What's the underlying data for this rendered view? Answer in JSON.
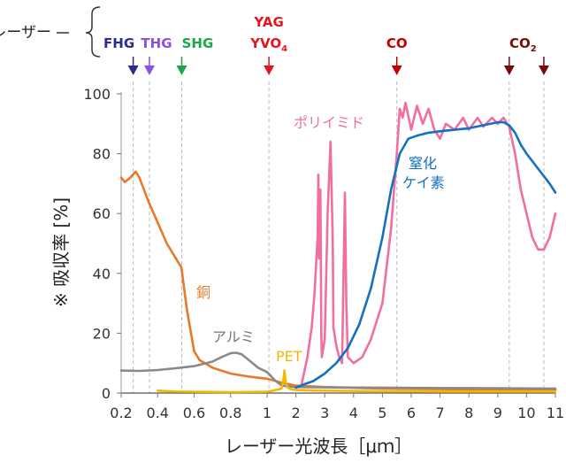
{
  "chart_data": {
    "type": "line",
    "xlabel": "レーザー光波長［μｍ］",
    "ylabel": "※ 吸収率 [%]",
    "ylim": [
      0,
      100
    ],
    "yticks": [
      "0",
      "20",
      "40",
      "60",
      "80",
      "100"
    ],
    "yticks_values": [
      0,
      20,
      40,
      60,
      80,
      100
    ],
    "xticks": [
      "0.2",
      "0.4",
      "0.6",
      "0.8",
      "1",
      "2",
      "3",
      "4",
      "5",
      "6",
      "7",
      "8",
      "9",
      "10",
      "11"
    ],
    "xticks_values": [
      0.2,
      0.4,
      0.6,
      0.8,
      1,
      2,
      3,
      4,
      5,
      6,
      7,
      8,
      9,
      10,
      11
    ],
    "grid": false,
    "laser_group_label": "レーザー",
    "lasers": [
      {
        "id": "fhg",
        "label": "FHG",
        "wavelength": 0.266,
        "color": "#2c2a8c"
      },
      {
        "id": "thg",
        "label": "THG",
        "wavelength": 0.355,
        "color": "#8c4fe6"
      },
      {
        "id": "shg",
        "label": "SHG",
        "wavelength": 0.532,
        "color": "#1ca64a"
      },
      {
        "id": "yag",
        "label": "YAG",
        "label2": "YVO",
        "subscript": "4",
        "wavelength": 1.064,
        "color": "#e4161c"
      },
      {
        "id": "co",
        "label": "CO",
        "wavelength": 5.5,
        "color": "#c00000"
      },
      {
        "id": "co2a",
        "label": "CO",
        "subscript": "2",
        "wavelength": 9.4,
        "color": "#7a0a0a"
      },
      {
        "id": "co2b",
        "label": "",
        "wavelength": 10.6,
        "color": "#7a0a0a"
      }
    ],
    "series": [
      {
        "name": "銅",
        "color": "#e8782a",
        "points": [
          [
            0.2,
            72
          ],
          [
            0.22,
            70.5
          ],
          [
            0.25,
            72
          ],
          [
            0.28,
            74
          ],
          [
            0.3,
            72
          ],
          [
            0.35,
            64
          ],
          [
            0.4,
            57
          ],
          [
            0.45,
            50
          ],
          [
            0.5,
            45
          ],
          [
            0.53,
            42
          ],
          [
            0.56,
            28
          ],
          [
            0.6,
            14
          ],
          [
            0.63,
            11
          ],
          [
            0.7,
            8.5
          ],
          [
            0.8,
            6.5
          ],
          [
            0.9,
            5.5
          ],
          [
            1,
            4.8
          ],
          [
            1.5,
            3.5
          ],
          [
            2,
            2.5
          ],
          [
            3,
            2
          ],
          [
            5,
            1.5
          ],
          [
            7,
            1.3
          ],
          [
            9,
            1.2
          ],
          [
            11,
            1.1
          ]
        ]
      },
      {
        "name": "アルミ",
        "color": "#8a8a8a",
        "points": [
          [
            0.2,
            7.5
          ],
          [
            0.3,
            7.4
          ],
          [
            0.4,
            7.7
          ],
          [
            0.5,
            8.3
          ],
          [
            0.6,
            9
          ],
          [
            0.7,
            10.5
          ],
          [
            0.75,
            12
          ],
          [
            0.8,
            13.3
          ],
          [
            0.83,
            13.5
          ],
          [
            0.86,
            13
          ],
          [
            0.9,
            11
          ],
          [
            0.95,
            8.5
          ],
          [
            1,
            7
          ],
          [
            1.3,
            4
          ],
          [
            1.5,
            2.6
          ],
          [
            1.7,
            2.2
          ],
          [
            2,
            2
          ],
          [
            3,
            1.9
          ],
          [
            5,
            1.8
          ],
          [
            7,
            1.7
          ],
          [
            9,
            1.6
          ],
          [
            11,
            1.5
          ]
        ]
      },
      {
        "name": "PET",
        "color": "#f2b800",
        "points": [
          [
            0.4,
            0.8
          ],
          [
            0.5,
            0.5
          ],
          [
            0.6,
            0.4
          ],
          [
            0.8,
            0.3
          ],
          [
            1,
            0.4
          ],
          [
            1.2,
            0.8
          ],
          [
            1.4,
            1.2
          ],
          [
            1.5,
            1.5
          ],
          [
            1.56,
            4
          ],
          [
            1.6,
            7.5
          ],
          [
            1.64,
            4
          ],
          [
            1.7,
            2
          ],
          [
            1.8,
            1.3
          ],
          [
            2,
            1
          ],
          [
            3,
            0.8
          ],
          [
            5,
            0.6
          ],
          [
            7,
            0.5
          ],
          [
            9,
            0.5
          ],
          [
            11,
            0.5
          ]
        ]
      },
      {
        "name": "ポリイミド",
        "color": "#f06ea0",
        "points": [
          [
            2.2,
            3
          ],
          [
            2.4,
            12
          ],
          [
            2.55,
            22
          ],
          [
            2.65,
            34
          ],
          [
            2.75,
            52
          ],
          [
            2.78,
            73
          ],
          [
            2.8,
            45
          ],
          [
            2.85,
            68
          ],
          [
            2.88,
            20
          ],
          [
            2.9,
            12
          ],
          [
            3,
            18
          ],
          [
            3.1,
            60
          ],
          [
            3.2,
            84
          ],
          [
            3.28,
            50
          ],
          [
            3.3,
            22
          ],
          [
            3.4,
            16
          ],
          [
            3.5,
            12
          ],
          [
            3.6,
            10
          ],
          [
            3.7,
            67
          ],
          [
            3.75,
            30
          ],
          [
            3.8,
            12
          ],
          [
            4,
            10
          ],
          [
            4.3,
            12
          ],
          [
            4.6,
            18
          ],
          [
            5,
            30
          ],
          [
            5.3,
            55
          ],
          [
            5.5,
            80
          ],
          [
            5.6,
            95
          ],
          [
            5.7,
            92
          ],
          [
            5.8,
            97
          ],
          [
            6,
            88
          ],
          [
            6.2,
            96
          ],
          [
            6.4,
            90
          ],
          [
            6.6,
            95
          ],
          [
            6.8,
            88
          ],
          [
            7,
            85
          ],
          [
            7.2,
            90
          ],
          [
            7.5,
            88
          ],
          [
            7.8,
            92
          ],
          [
            8,
            88
          ],
          [
            8.3,
            92
          ],
          [
            8.5,
            89
          ],
          [
            8.8,
            92
          ],
          [
            9,
            90
          ],
          [
            9.2,
            92
          ],
          [
            9.4,
            89
          ],
          [
            9.6,
            80
          ],
          [
            9.8,
            68
          ],
          [
            10,
            60
          ],
          [
            10.2,
            52
          ],
          [
            10.4,
            48
          ],
          [
            10.6,
            48
          ],
          [
            10.8,
            52
          ],
          [
            11,
            60
          ]
        ]
      },
      {
        "name": "窒化ケイ素",
        "color": "#1470c0",
        "points": [
          [
            2,
            1.8
          ],
          [
            2.3,
            3
          ],
          [
            2.6,
            4
          ],
          [
            3,
            6.5
          ],
          [
            3.4,
            10
          ],
          [
            3.8,
            15
          ],
          [
            4.2,
            23
          ],
          [
            4.6,
            35
          ],
          [
            5,
            52
          ],
          [
            5.3,
            68
          ],
          [
            5.6,
            80
          ],
          [
            5.9,
            85
          ],
          [
            6.2,
            86
          ],
          [
            6.6,
            87
          ],
          [
            7,
            87.5
          ],
          [
            7.5,
            88
          ],
          [
            8,
            88.5
          ],
          [
            8.5,
            89.5
          ],
          [
            9,
            90.5
          ],
          [
            9.2,
            90.5
          ],
          [
            9.4,
            89.5
          ],
          [
            9.6,
            87
          ],
          [
            9.8,
            83
          ],
          [
            10,
            80
          ],
          [
            10.4,
            75
          ],
          [
            10.8,
            70
          ],
          [
            11,
            67
          ]
        ]
      }
    ],
    "annotations": {
      "copper": "銅",
      "aluminum": "アルミ",
      "pet": "PET",
      "polyimide": "ポリイミド",
      "nitride_line1": "窒化",
      "nitride_line2": "ケイ素"
    }
  }
}
